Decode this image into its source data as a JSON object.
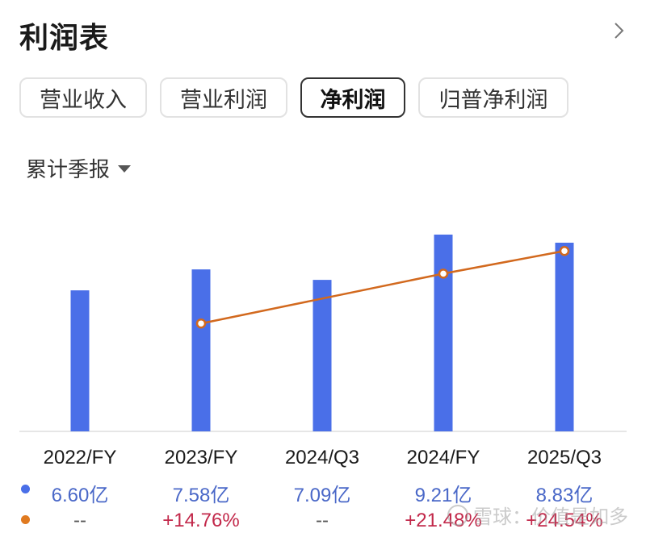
{
  "header": {
    "title": "利润表"
  },
  "tabs": [
    {
      "label": "营业收入",
      "active": false
    },
    {
      "label": "营业利润",
      "active": false
    },
    {
      "label": "净利润",
      "active": true
    },
    {
      "label": "归普净利润",
      "active": false
    }
  ],
  "period_selector": {
    "label": "累计季报"
  },
  "chart_data": {
    "type": "bar",
    "categories": [
      "2022/FY",
      "2023/FY",
      "2024/Q3",
      "2024/FY",
      "2025/Q3"
    ],
    "series": [
      {
        "values": [
          6.6,
          7.58,
          7.09,
          9.21,
          8.83
        ],
        "color": "#4a6fe8"
      },
      {
        "values": [
          null,
          14.76,
          null,
          21.48,
          24.54
        ],
        "color": "#d2691e"
      }
    ],
    "value_labels": [
      "6.60亿",
      "7.58亿",
      "7.09亿",
      "9.21亿",
      "8.83亿"
    ],
    "growth_labels": [
      "--",
      "+14.76%",
      "--",
      "+21.48%",
      "+24.54%"
    ],
    "grid": false
  },
  "watermark": {
    "text": "雪球：价值是如多"
  },
  "colors": {
    "bar": "#4a6fe8",
    "line": "#d2691e",
    "positive": "#c2284a",
    "value_text": "#4a68c8"
  }
}
